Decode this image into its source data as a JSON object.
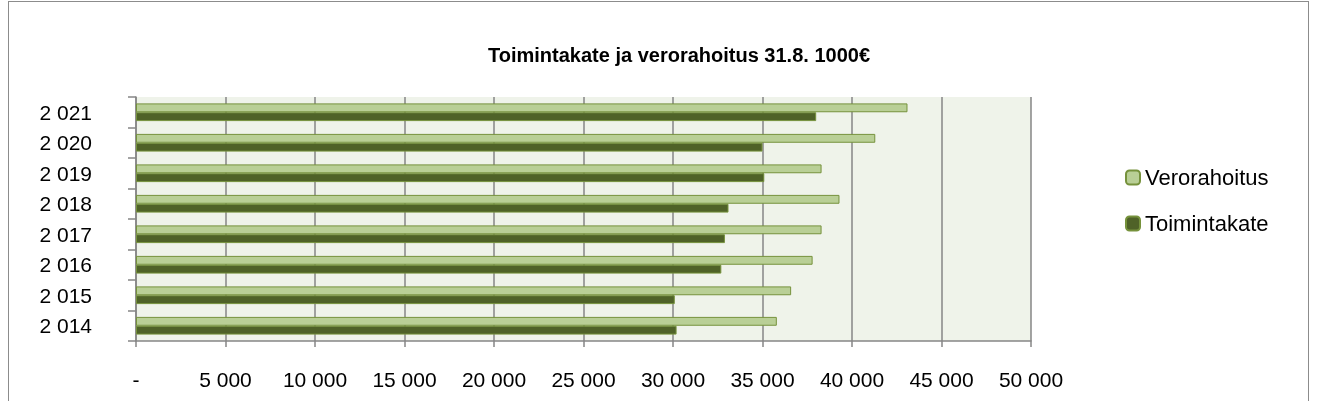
{
  "chart_data": {
    "type": "bar",
    "orientation": "horizontal",
    "title": "Toimintakate ja verorahoitus 31.8. 1000€",
    "categories": [
      "2 021",
      "2 020",
      "2 019",
      "2 018",
      "2 017",
      "2 016",
      "2 015",
      "2 014"
    ],
    "series": [
      {
        "name": "Verorahoitus",
        "color": "#b9cf96",
        "values": [
          43100,
          41300,
          38300,
          39300,
          38300,
          37800,
          36600,
          35800
        ]
      },
      {
        "name": "Toimintakate",
        "color": "#4f6228",
        "values": [
          38000,
          35000,
          35100,
          33100,
          32900,
          32700,
          30100,
          30200
        ]
      }
    ],
    "xlim": [
      0,
      50000
    ],
    "xticks": [
      {
        "value": 0,
        "label": "-"
      },
      {
        "value": 5000,
        "label": "5 000"
      },
      {
        "value": 10000,
        "label": "10 000"
      },
      {
        "value": 15000,
        "label": "15 000"
      },
      {
        "value": 20000,
        "label": "20 000"
      },
      {
        "value": 25000,
        "label": "25 000"
      },
      {
        "value": 30000,
        "label": "30 000"
      },
      {
        "value": 35000,
        "label": "35 000"
      },
      {
        "value": 40000,
        "label": "40 000"
      },
      {
        "value": 45000,
        "label": "45 000"
      },
      {
        "value": 50000,
        "label": "50 000"
      }
    ],
    "grid": "x",
    "legend": "right"
  }
}
